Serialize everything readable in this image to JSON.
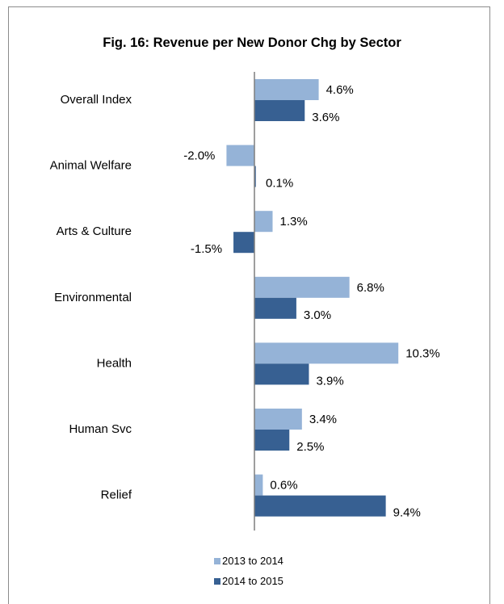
{
  "chart_data": {
    "type": "bar",
    "orientation": "horizontal",
    "title": "Fig. 16: Revenue per New Donor Chg by Sector",
    "categories": [
      "Overall Index",
      "Animal Welfare",
      "Arts & Culture",
      "Environmental",
      "Health",
      "Human Svc",
      "Relief"
    ],
    "series": [
      {
        "name": "2013 to 2014",
        "color": "#95b3d7",
        "values": [
          4.6,
          -2.0,
          1.3,
          6.8,
          10.3,
          3.4,
          0.6
        ],
        "labels": [
          "4.6%",
          "-2.0%",
          "1.3%",
          "6.8%",
          "10.3%",
          "3.4%",
          "0.6%"
        ]
      },
      {
        "name": "2014 to 2015",
        "color": "#376092",
        "values": [
          3.6,
          0.1,
          -1.5,
          3.0,
          3.9,
          2.5,
          9.4
        ],
        "labels": [
          "3.6%",
          "0.1%",
          "-1.5%",
          "3.0%",
          "3.9%",
          "2.5%",
          "9.4%"
        ]
      }
    ],
    "xlim": [
      -2.0,
      10.3
    ],
    "grid": false,
    "legend_position": "bottom"
  }
}
